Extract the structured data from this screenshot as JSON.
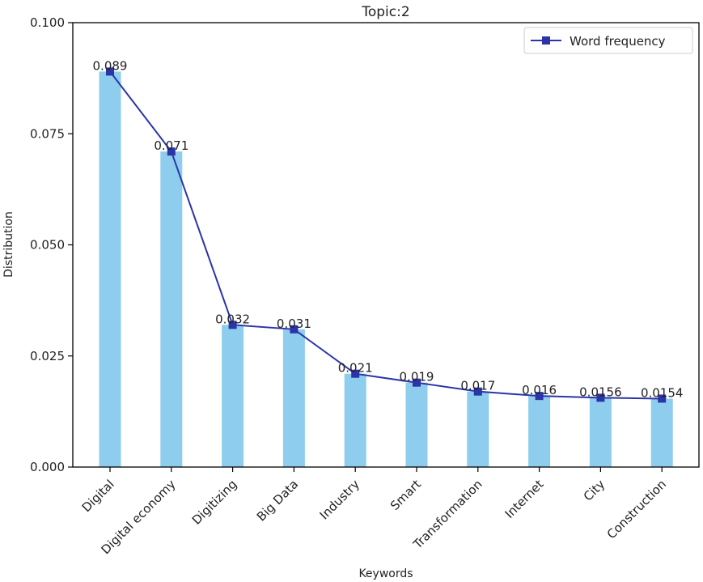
{
  "chart_data": {
    "type": "bar",
    "title": "Topic:2",
    "xlabel": "Keywords",
    "ylabel": "Distribution",
    "ylim": [
      0,
      0.1
    ],
    "yticks": [
      "0.000",
      "0.025",
      "0.050",
      "0.075",
      "0.100"
    ],
    "categories": [
      "Digital",
      "Digital economy",
      "Digitizing",
      "Big Data",
      "Industry",
      "Smart",
      "Transformation",
      "Internet",
      "City",
      "Construction"
    ],
    "values": [
      0.089,
      0.071,
      0.032,
      0.031,
      0.021,
      0.019,
      0.017,
      0.016,
      0.0156,
      0.0154
    ],
    "value_labels": [
      "0.089",
      "0.071",
      "0.032",
      "0.031",
      "0.021",
      "0.019",
      "0.017",
      "0.016",
      "0.0156",
      "0.0154"
    ],
    "series": [
      {
        "name": "Word frequency",
        "type": "line",
        "marker": "square",
        "values": [
          0.089,
          0.071,
          0.032,
          0.031,
          0.021,
          0.019,
          0.017,
          0.016,
          0.0156,
          0.0154
        ]
      }
    ],
    "legend": "top-right",
    "grid": false,
    "colors": {
      "bar": "#8ecdee",
      "line": "#2b35a8"
    }
  }
}
